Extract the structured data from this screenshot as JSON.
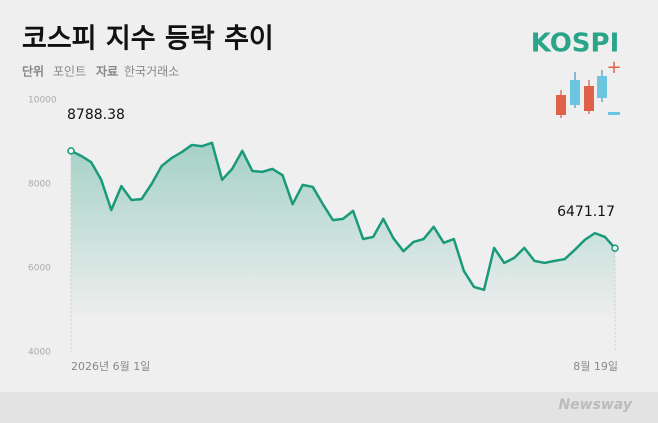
{
  "header": {
    "unit_label": "단위",
    "unit": "포인트",
    "source_label": "자료",
    "source": "한국거래소",
    "logo": "KOSPI",
    "brand": "Newsway"
  },
  "chart_data": {
    "type": "line",
    "title": "코스피 지수 등락 추이",
    "categories": [
      "2026년 6월 1일",
      null,
      null,
      null,
      null,
      null,
      null,
      null,
      null,
      null,
      null,
      null,
      null,
      null,
      null,
      null,
      null,
      null,
      null,
      null,
      null,
      null,
      null,
      null,
      null,
      null,
      null,
      null,
      null,
      null,
      null,
      null,
      null,
      null,
      null,
      null,
      null,
      null,
      null,
      null,
      null,
      null,
      null,
      null,
      null,
      null,
      null,
      null,
      null,
      null,
      null,
      null,
      null,
      null,
      "8월 19일"
    ],
    "values": [
      8788.38,
      8670,
      8520,
      8100,
      7380,
      7950,
      7620,
      7640,
      8000,
      8430,
      8620,
      8760,
      8930,
      8900,
      8980,
      8100,
      8360,
      8790,
      8310,
      8290,
      8360,
      8210,
      7520,
      7980,
      7930,
      7520,
      7140,
      7170,
      7360,
      6690,
      6740,
      7170,
      6710,
      6400,
      6620,
      6690,
      6980,
      6600,
      6690,
      5930,
      5550,
      5480,
      6480,
      6120,
      6240,
      6480,
      6170,
      6120,
      6170,
      6210,
      6430,
      6670,
      6830,
      6740,
      6471.17
    ],
    "color": "#1a9a7a",
    "ylim": [
      4000,
      10000
    ],
    "yticks": [
      4000,
      6000,
      8000,
      10000
    ]
  }
}
